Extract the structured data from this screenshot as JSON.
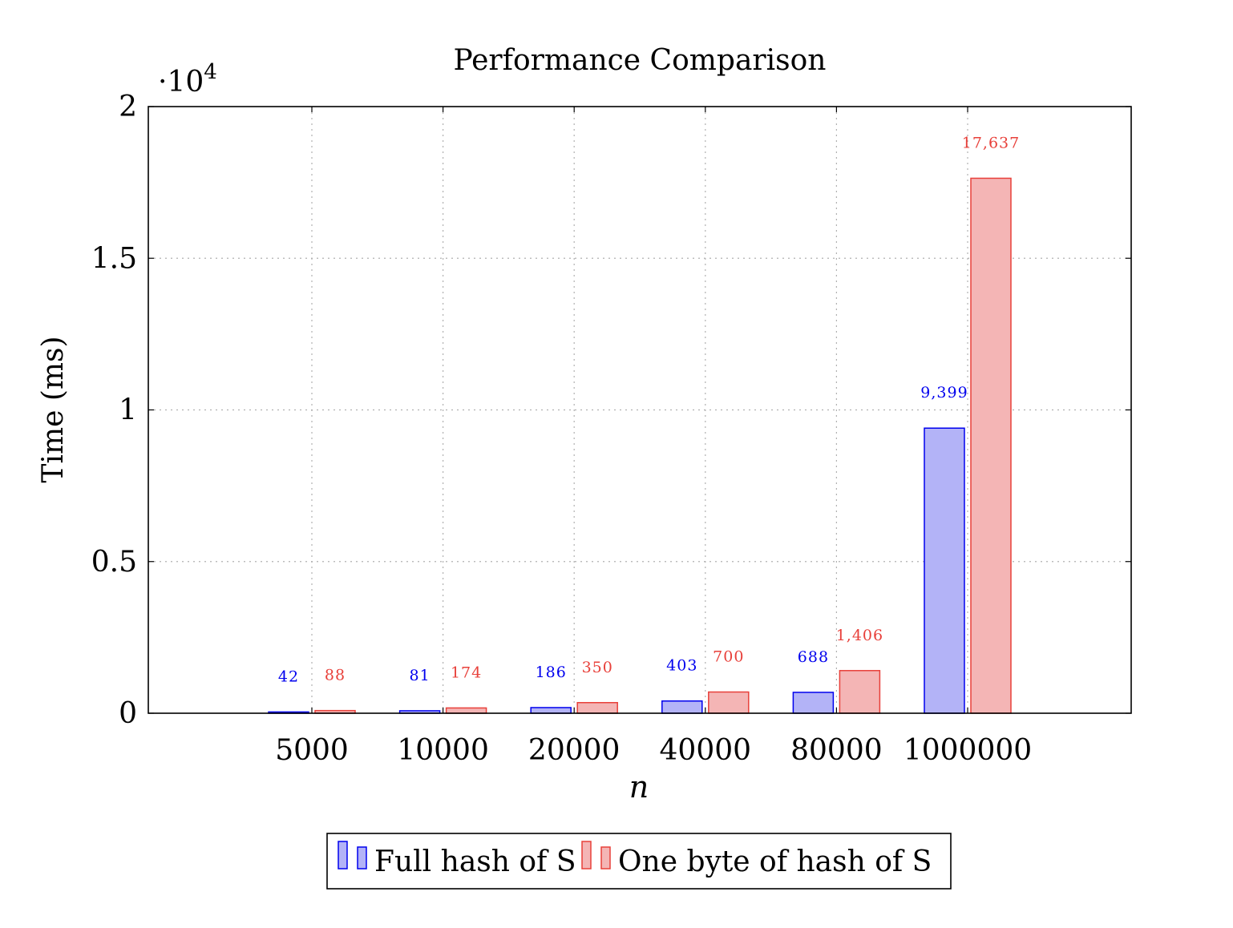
{
  "chart_data": {
    "type": "bar",
    "title": "Performance Comparison",
    "xlabel": "n",
    "ylabel": "Time (ms)",
    "y_scale_label": "·10",
    "y_scale_exp": "4",
    "categories": [
      "5000",
      "10000",
      "20000",
      "40000",
      "80000",
      "1000000"
    ],
    "y_ticks": [
      0,
      5000,
      10000,
      15000,
      20000
    ],
    "y_tick_labels": [
      "0",
      "0.5",
      "1",
      "1.5",
      "2"
    ],
    "ylim": [
      0,
      20000
    ],
    "grid": true,
    "legend_position": "bottom",
    "series": [
      {
        "name": "Full hash of S",
        "color": "#0000ee",
        "fill": "#b3b3f7",
        "values": [
          42,
          81,
          186,
          403,
          688,
          9399
        ],
        "labels": [
          "42",
          "81",
          "186",
          "403",
          "688",
          "9,399"
        ]
      },
      {
        "name": "One byte of hash of S",
        "color": "#e8403a",
        "fill": "#f4b5b5",
        "values": [
          88,
          174,
          350,
          700,
          1406,
          17637
        ],
        "labels": [
          "88",
          "174",
          "350",
          "700",
          "1,406",
          "17,637"
        ]
      }
    ]
  }
}
